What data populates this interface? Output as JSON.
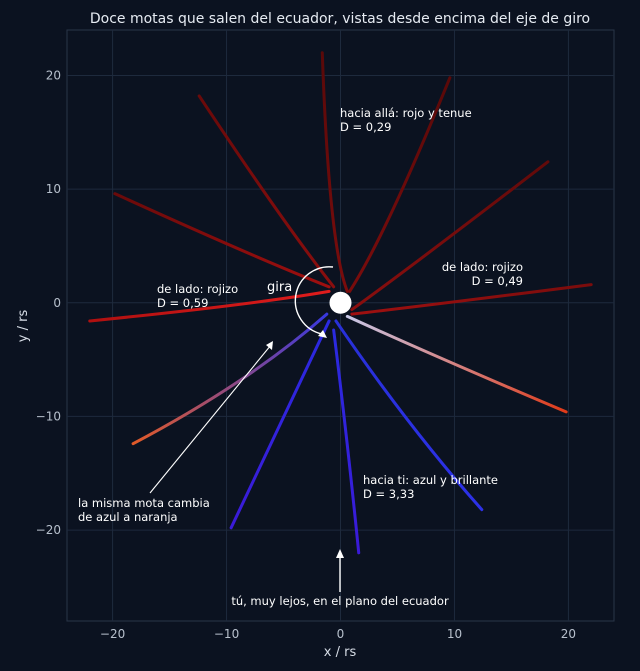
{
  "chart_data": {
    "type": "line",
    "title": "Doce motas que salen del ecuador, vistas desde encima del eje de giro",
    "xlabel": "x / rs",
    "ylabel": "y / rs",
    "xlim": [
      -24,
      24
    ],
    "ylim": [
      -28,
      24
    ],
    "xticks": [
      -20,
      -10,
      0,
      10,
      20
    ],
    "yticks": [
      -20,
      -10,
      0,
      10,
      20
    ],
    "xtick_labels": [
      "−20",
      "−10",
      "0",
      "10",
      "20"
    ],
    "ytick_labels": [
      "−20",
      "−10",
      "0",
      "10",
      "20"
    ],
    "grid": true,
    "star": {
      "x": 0,
      "y": 0,
      "color": "#ffffff"
    },
    "colors": {
      "background": "#0b1220",
      "grid": "#1e2a3d",
      "blue": "#2a2fe0",
      "violet": "#3a1fd8",
      "red": "#c81818",
      "dark_red": "#6a0a0a",
      "orange": "#e2612a"
    },
    "series": [
      {
        "points": [
          [
            0.6,
            1.0
          ],
          [
            -1.0,
            5.0
          ],
          [
            -1.6,
            22.0
          ]
        ],
        "color_end": "#5a0909",
        "color_start": "#7a0c0c"
      },
      {
        "points": [
          [
            0.8,
            1.0
          ],
          [
            4.0,
            6.0
          ],
          [
            9.6,
            19.8
          ]
        ],
        "color_end": "#5a0909",
        "color_start": "#7a0c0c"
      },
      {
        "points": [
          [
            1.0,
            -0.6
          ],
          [
            6.0,
            3.0
          ],
          [
            18.2,
            12.4
          ]
        ],
        "color_end": "#620a0a",
        "color_start": "#8a0e0e"
      },
      {
        "points": [
          [
            1.0,
            -1.0
          ],
          [
            8.0,
            -0.2
          ],
          [
            22.0,
            1.6
          ]
        ],
        "color_end": "#7a0c0c",
        "color_start": "#a01010"
      },
      {
        "points": [
          [
            0.6,
            -1.2
          ],
          [
            8.0,
            -4.6
          ],
          [
            19.8,
            -9.6
          ]
        ],
        "color_end": "#e03a18",
        "color_start": "#c8c8e8"
      },
      {
        "points": [
          [
            -0.4,
            -1.6
          ],
          [
            6.0,
            -11.0
          ],
          [
            12.4,
            -18.2
          ]
        ],
        "color_end": "#2d31e8",
        "color_start": "#2830d8"
      },
      {
        "points": [
          [
            -0.6,
            -2.4
          ],
          [
            0.6,
            -12.0
          ],
          [
            1.6,
            -22.0
          ]
        ],
        "color_end": "#3a1ad8",
        "color_start": "#2a2ae0"
      },
      {
        "points": [
          [
            -1.0,
            -1.6
          ],
          [
            -5.0,
            -10.0
          ],
          [
            -9.6,
            -19.8
          ]
        ],
        "color_end": "#3b1bd8",
        "color_start": "#2a2ae0"
      },
      {
        "points": [
          [
            -1.2,
            -1.0
          ],
          [
            -8.0,
            -7.0
          ],
          [
            -18.2,
            -12.4
          ]
        ],
        "color_end": "#e25a28",
        "color_start": "#3838e0"
      },
      {
        "points": [
          [
            -1.0,
            1.0
          ],
          [
            -8.0,
            -0.2
          ],
          [
            -22.0,
            -1.6
          ]
        ],
        "color_end": "#b01010",
        "color_start": "#e01c1c"
      },
      {
        "points": [
          [
            -1.0,
            1.4
          ],
          [
            -8.0,
            4.2
          ],
          [
            -19.8,
            9.6
          ]
        ],
        "color_end": "#6a0a0a",
        "color_start": "#a00f0f"
      },
      {
        "points": [
          [
            -0.6,
            1.4
          ],
          [
            -5.0,
            7.0
          ],
          [
            -12.4,
            18.2
          ]
        ],
        "color_end": "#6a0a0a",
        "color_start": "#8a0e0e"
      }
    ],
    "annotations": {
      "away_line1": "hacia allá: rojo y tenue",
      "away_line2": "D = 0,29",
      "right_line1": "de lado: rojizo",
      "right_line2": "D = 0,49",
      "left_line1": "de lado: rojizo",
      "left_line2": "D = 0,59",
      "toward_line1": "hacia ti: azul y brillante",
      "toward_line2": "D = 3,33",
      "spin": "gira",
      "change_line1": "la misma mota cambia",
      "change_line2": "de azul a naranja",
      "observer": "tú, muy lejos, en el plano del ecuador"
    }
  }
}
